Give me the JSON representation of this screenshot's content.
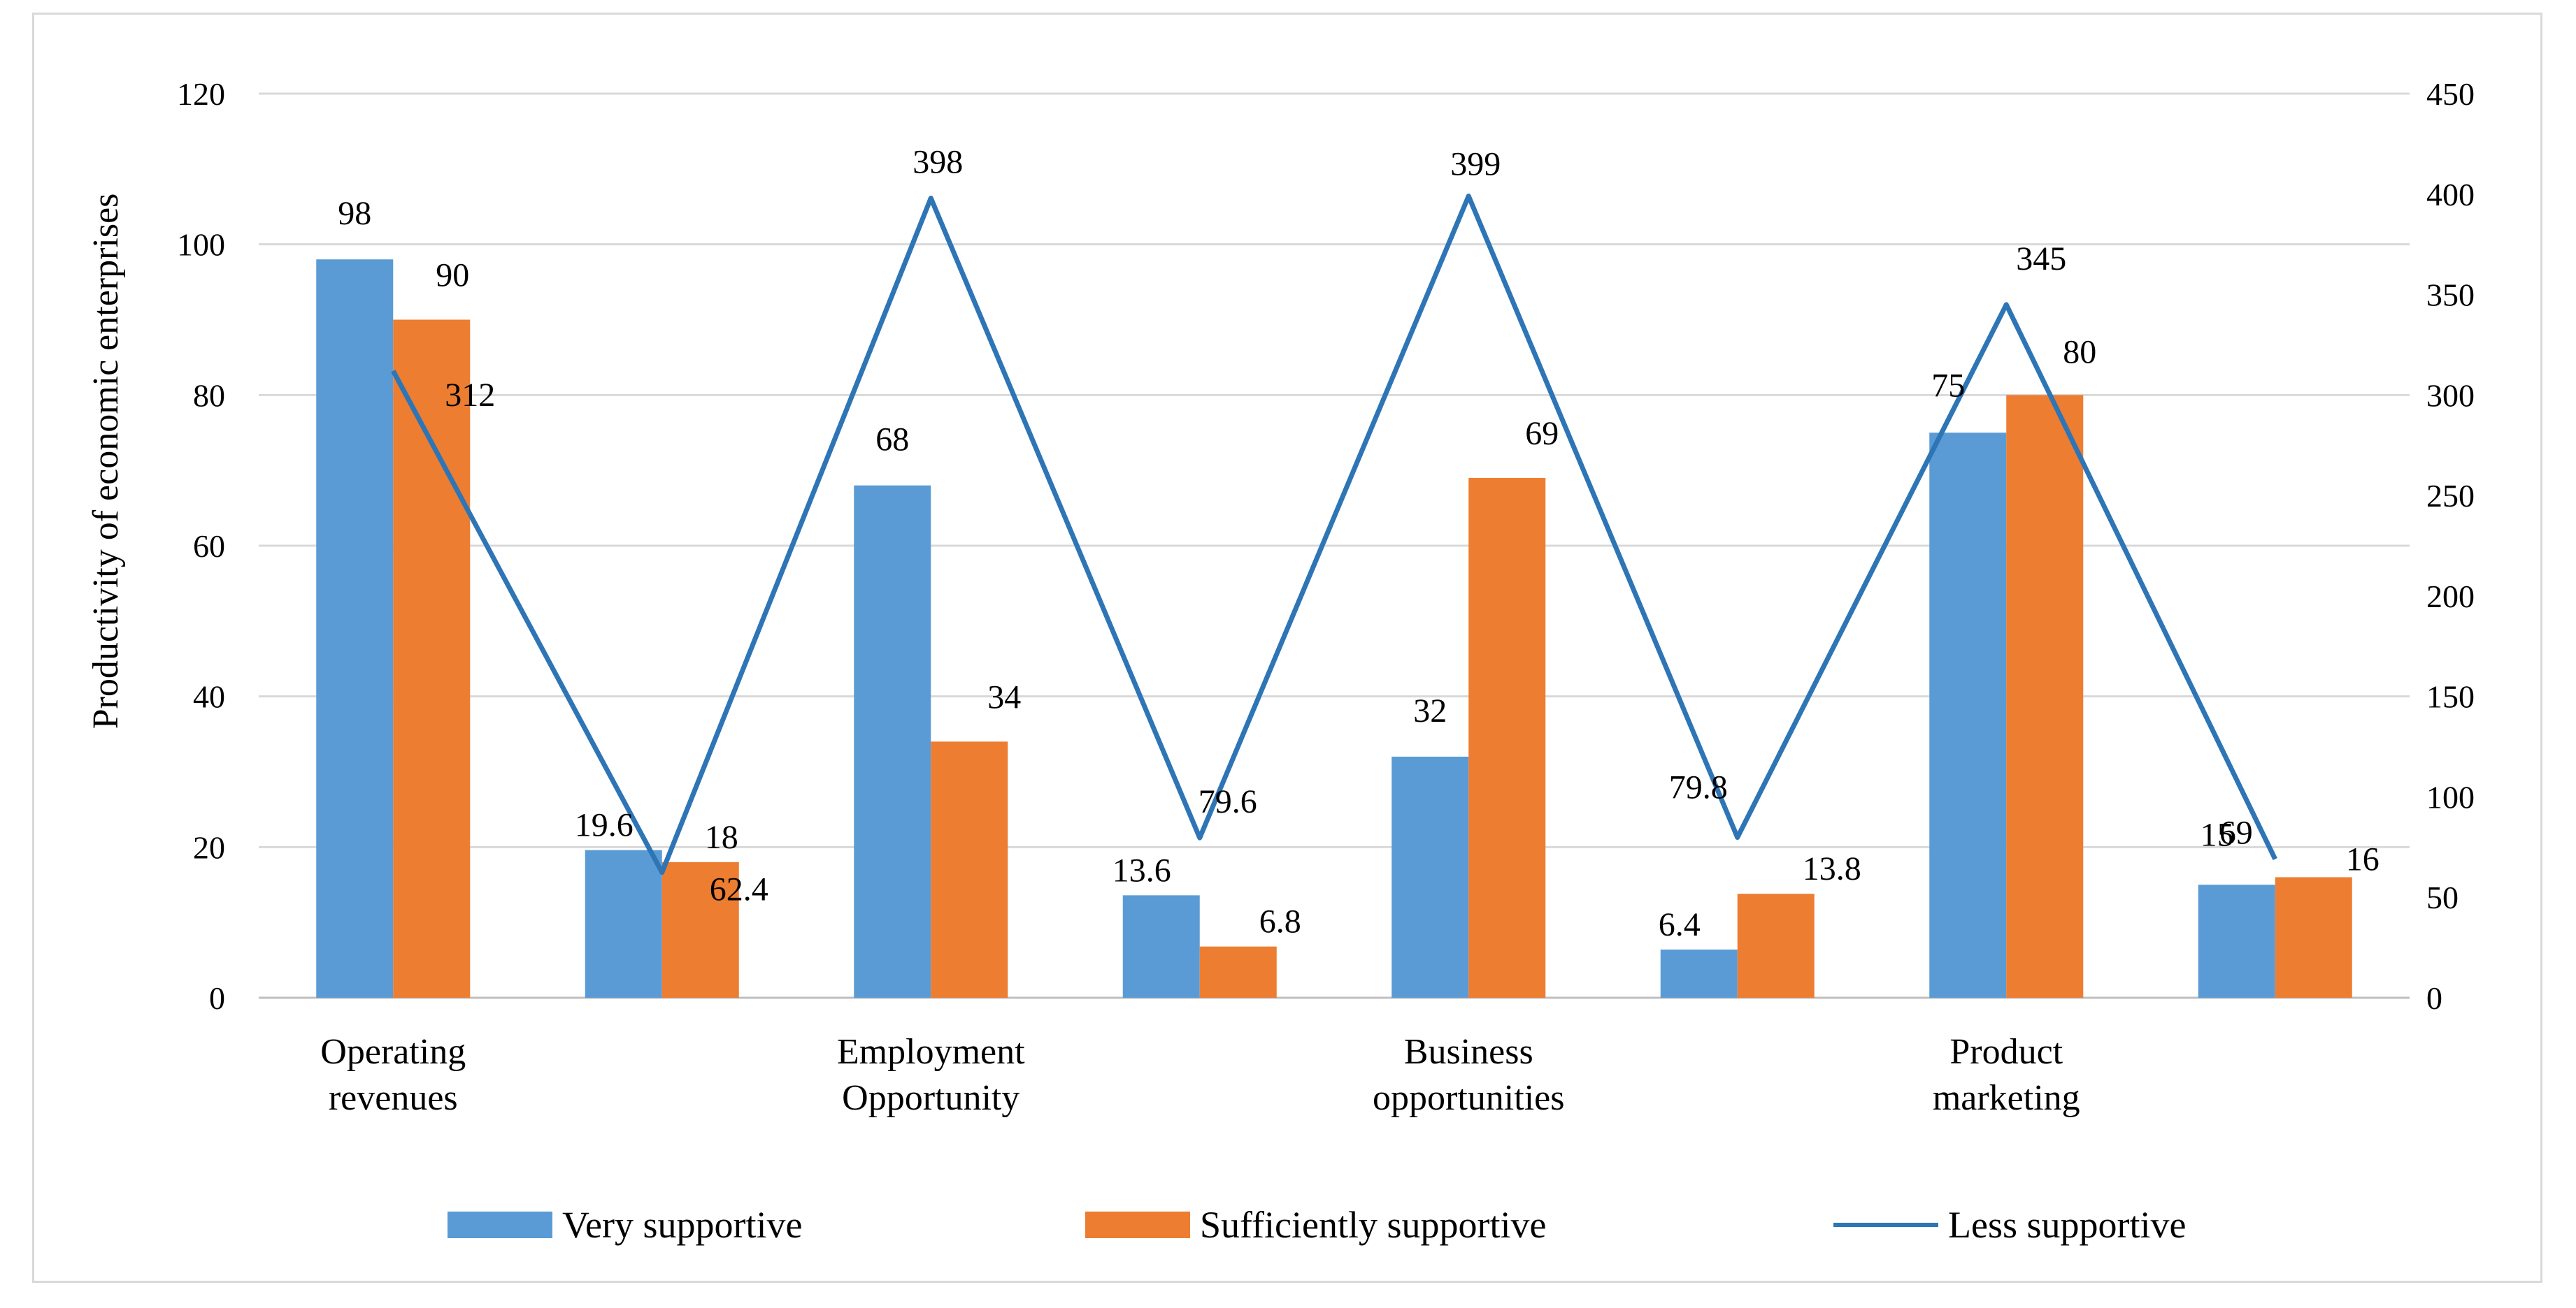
{
  "chart_data": {
    "type": "bar+line",
    "title": "",
    "ylabel": "Productivity of economic enterprises",
    "ylim": [
      0,
      120
    ],
    "y_ticks": [
      "0",
      "20",
      "40",
      "60",
      "80",
      "100",
      "120"
    ],
    "y2lim": [
      0,
      450
    ],
    "y2_ticks": [
      "0",
      "50",
      "100",
      "150",
      "200",
      "250",
      "300",
      "350",
      "400",
      "450"
    ],
    "categories": [
      "Operating\nrevenues",
      "",
      "Employment\nOpportunity",
      "",
      "Business\nopportunities",
      "",
      "Product\nmarketing",
      ""
    ],
    "series": [
      {
        "name": "Very supportive",
        "type": "bar",
        "axis": "left",
        "color": "#5b9bd5",
        "values": [
          98,
          19.6,
          68,
          13.6,
          32,
          6.4,
          75,
          15
        ],
        "labels": [
          "98",
          "19.6",
          "68",
          "13.6",
          "32",
          "6.4",
          "75",
          "15"
        ]
      },
      {
        "name": "Sufficiently supportive",
        "type": "bar",
        "axis": "left",
        "color": "#ed7d31",
        "values": [
          90,
          18,
          34,
          6.8,
          69,
          13.8,
          80,
          16
        ],
        "labels": [
          "90",
          "18",
          "34",
          "6.8",
          "69",
          "13.8",
          "80",
          "16"
        ]
      },
      {
        "name": "Less supportive",
        "type": "line",
        "axis": "right",
        "color": "#2e75b6",
        "values": [
          312,
          62.4,
          398,
          79.6,
          399,
          79.8,
          345,
          69
        ],
        "labels": [
          "312",
          "62.4",
          "398",
          "79.6",
          "399",
          "79.8",
          "345",
          "69"
        ]
      }
    ],
    "legend": {
      "position": "bottom"
    },
    "grid": true,
    "gridline_color": "#d9d9d9"
  }
}
